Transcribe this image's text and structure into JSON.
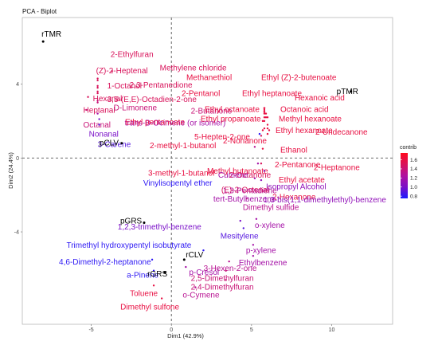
{
  "chart_data": {
    "type": "scatter",
    "title": "PCA - Biplot",
    "xlabel": "Dim1 (42.9%)",
    "ylabel": "Dim2 (24.4%)",
    "xlim": [
      -9.3,
      13.8
    ],
    "ylim": [
      -9.0,
      7.6
    ],
    "xticks": [
      -5,
      0,
      5,
      10
    ],
    "yticks": [
      -4,
      0,
      4
    ],
    "legend": {
      "title": "contrib",
      "position": "right",
      "ticks": [
        1.6,
        1.4,
        1.2,
        1.0,
        0.8
      ],
      "range": [
        0.75,
        1.75
      ],
      "colors": [
        "#1a1aff",
        "#7a10c8",
        "#b0119f",
        "#d8125a",
        "#ff0a1e"
      ]
    },
    "samples": [
      {
        "label": "rTMR",
        "x": -8.0,
        "y": 6.3
      },
      {
        "label": "pTMR",
        "x": 11.2,
        "y": 3.6
      },
      {
        "label": "pCLV",
        "x": -3.1,
        "y": 0.8
      },
      {
        "label": "pGRS",
        "x": -1.7,
        "y": -3.5
      },
      {
        "label": "rCLV",
        "x": 0.8,
        "y": -5.5
      },
      {
        "label": "rGRS",
        "x": -0.4,
        "y": -6.2
      }
    ],
    "variables": [
      {
        "label": "2-Ethylfuran",
        "x": -3.7,
        "y": 4.7,
        "contrib": 1.5
      },
      {
        "label": "(Z)-2-Heptenal",
        "x": -4.6,
        "y": 4.2,
        "contrib": 1.5
      },
      {
        "label": "Methylene chloride",
        "x": -4.6,
        "y": 4.3,
        "contrib": 1.5
      },
      {
        "label": "1-Octanol",
        "x": -4.6,
        "y": 3.9,
        "contrib": 1.5
      },
      {
        "label": "2,3-Pentanedione",
        "x": -4.6,
        "y": 3.8,
        "contrib": 1.5
      },
      {
        "label": "Hexanal",
        "x": -4.6,
        "y": 3.6,
        "contrib": 1.5
      },
      {
        "label": "3,5-(E,E)-Octadien-2-one",
        "x": -4.6,
        "y": 3.5,
        "contrib": 1.5
      },
      {
        "label": "Heptanal",
        "x": -5.2,
        "y": 3.3,
        "contrib": 1.5
      },
      {
        "label": "D-Limonene",
        "x": -4.6,
        "y": 3.1,
        "contrib": 1.4
      },
      {
        "label": "2-Butanone",
        "x": -4.6,
        "y": 3.0,
        "contrib": 1.4
      },
      {
        "label": "Octanal",
        "x": -5.3,
        "y": 2.6,
        "contrib": 1.4
      },
      {
        "label": "trans-B-Ocimene (or isomer)",
        "x": -4.6,
        "y": 2.4,
        "contrib": 1.2
      },
      {
        "label": "Nonanal",
        "x": -4.5,
        "y": 2.1,
        "contrib": 1.0
      },
      {
        "label": "3-Carene",
        "x": -4.5,
        "y": 1.8,
        "contrib": 0.9
      },
      {
        "label": "Methanethiol",
        "x": 5.8,
        "y": 2.7,
        "contrib": 1.6
      },
      {
        "label": "Ethyl (Z)-2-butenoate",
        "x": 5.8,
        "y": 2.7,
        "contrib": 1.6
      },
      {
        "label": "2-Pentanol",
        "x": 5.8,
        "y": 2.7,
        "contrib": 1.6
      },
      {
        "label": "Ethyl heptanoate",
        "x": 5.8,
        "y": 2.7,
        "contrib": 1.6
      },
      {
        "label": "Hexanoic acid",
        "x": 5.8,
        "y": 2.6,
        "contrib": 1.6
      },
      {
        "label": "Ethyl octanoate",
        "x": 5.8,
        "y": 2.5,
        "contrib": 1.6
      },
      {
        "label": "Octanoic acid",
        "x": 5.8,
        "y": 2.5,
        "contrib": 1.6
      },
      {
        "label": "Ethyl propanoate",
        "x": 5.8,
        "y": 2.5,
        "contrib": 1.6
      },
      {
        "label": "Methyl hexanoate",
        "x": 5.9,
        "y": 2.4,
        "contrib": 1.6
      },
      {
        "label": "Ethyl pentanoate",
        "x": 5.8,
        "y": 2.4,
        "contrib": 1.6
      },
      {
        "label": "Ethyl hexanoate",
        "x": 5.9,
        "y": 2.2,
        "contrib": 1.6
      },
      {
        "label": "2-Undecanone",
        "x": 6.0,
        "y": 2.2,
        "contrib": 1.6
      },
      {
        "label": "5-Hepten-2-one",
        "x": 5.8,
        "y": 2.2,
        "contrib": 1.6
      },
      {
        "label": "2-Nonanone",
        "x": 5.8,
        "y": 2.0,
        "contrib": 1.6
      },
      {
        "label": "2-methyl-1-butanol",
        "x": 5.7,
        "y": 2.0,
        "contrib": 1.6
      },
      {
        "label": "Ethanol",
        "x": 6.0,
        "y": 1.8,
        "contrib": 1.6
      },
      {
        "label": "2-Pentanone",
        "x": 6.0,
        "y": 1.6,
        "contrib": 1.6
      },
      {
        "label": "2-Heptanone",
        "x": 6.1,
        "y": 1.5,
        "contrib": 1.6
      },
      {
        "label": "Methyl butanoate",
        "x": 5.8,
        "y": 1.6,
        "contrib": 1.6
      },
      {
        "label": "3-methyl-1-butanol",
        "x": 5.7,
        "y": 1.5,
        "contrib": 1.6
      },
      {
        "label": "Ethyl acetate",
        "x": 6.0,
        "y": 1.3,
        "contrib": 1.6
      },
      {
        "label": "Vinylisopentyl ether",
        "x": 5.5,
        "y": 1.3,
        "contrib": 0.8
      },
      {
        "label": "(E)-2-Octenal",
        "x": 5.6,
        "y": 1.2,
        "contrib": 1.5
      },
      {
        "label": "1,3-Pentadiene",
        "x": 5.2,
        "y": 0.6,
        "contrib": 1.3
      },
      {
        "label": "2-Hexanone",
        "x": 5.7,
        "y": 0.5,
        "contrib": 1.6
      },
      {
        "label": "2-Octanone",
        "x": 5.6,
        "y": -0.3,
        "contrib": 1.5
      },
      {
        "label": "Cumene",
        "x": 5.4,
        "y": -0.3,
        "contrib": 1.2
      },
      {
        "label": "Isopropyl Alcohol",
        "x": 5.8,
        "y": -0.7,
        "contrib": 1.1
      },
      {
        "label": "tert-Butylbenzene",
        "x": 5.2,
        "y": -1.1,
        "contrib": 1.2
      },
      {
        "label": "1,3-bis(1,1-dimethylethyl)-benzene",
        "x": 5.6,
        "y": -1.2,
        "contrib": 1.1
      },
      {
        "label": "Dimethyl sulfide",
        "x": 4.7,
        "y": -2.2,
        "contrib": 1.3
      },
      {
        "label": "1,2,3-trimethyl-benzene",
        "x": 4.3,
        "y": -3.4,
        "contrib": 1.0
      },
      {
        "label": "o-xylene",
        "x": 5.3,
        "y": -3.3,
        "contrib": 1.2
      },
      {
        "label": "Mesitylene",
        "x": 4.5,
        "y": -3.8,
        "contrib": 0.9
      },
      {
        "label": "p-xylene",
        "x": 5.1,
        "y": -4.7,
        "contrib": 1.2
      },
      {
        "label": "Ethylbenzene",
        "x": 5.1,
        "y": -5.3,
        "contrib": 1.2
      },
      {
        "label": "Trimethyl hydroxypentyl isobutyrate",
        "x": 2.0,
        "y": -5.0,
        "contrib": 0.8
      },
      {
        "label": "3-Hexen-2-one",
        "x": 3.6,
        "y": -5.6,
        "contrib": 1.3
      },
      {
        "label": "4,6-Dimethyl-2-heptanone",
        "x": -1.2,
        "y": -5.5,
        "contrib": 0.8
      },
      {
        "label": "p-Cresol",
        "x": 0.9,
        "y": -5.9,
        "contrib": 1.2
      },
      {
        "label": "2,5-Dimethylfuran",
        "x": 3.4,
        "y": -6.1,
        "contrib": 1.4
      },
      {
        "label": "a-Pinene",
        "x": -1.1,
        "y": -6.1,
        "contrib": 0.8
      },
      {
        "label": "2,4-Dimethylfuran",
        "x": 3.4,
        "y": -6.6,
        "contrib": 1.4
      },
      {
        "label": "Toluene",
        "x": -1.1,
        "y": -6.9,
        "contrib": 1.6
      },
      {
        "label": "o-Cymene",
        "x": 1.5,
        "y": -7.0,
        "contrib": 1.3
      },
      {
        "label": "Dimethyl sulfone",
        "x": -0.6,
        "y": -7.6,
        "contrib": 1.6
      }
    ]
  }
}
